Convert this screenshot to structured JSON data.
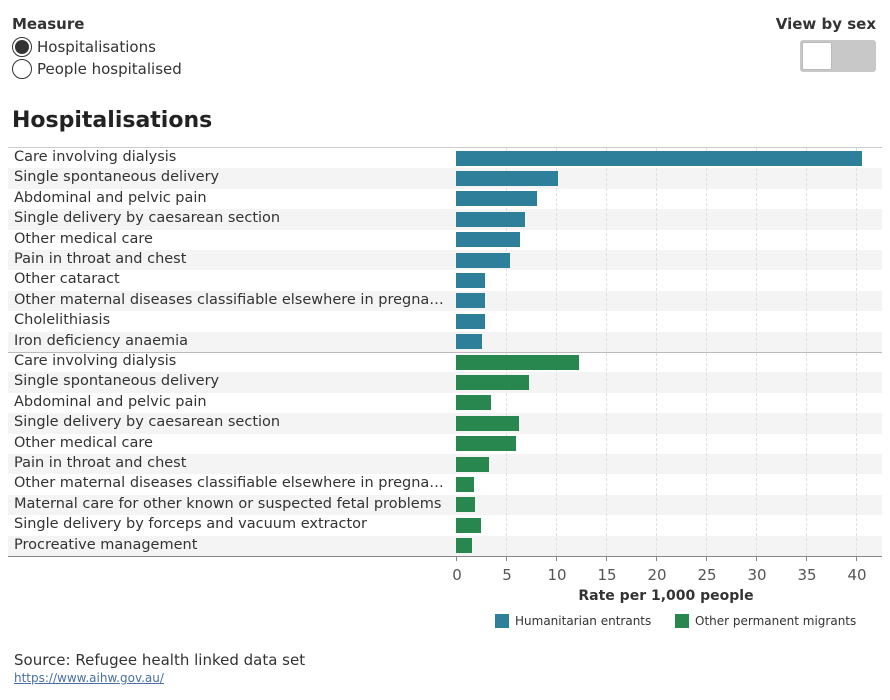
{
  "filters": {
    "measure_title": "Measure",
    "options": [
      "Hospitalisations",
      "People hospitalised"
    ],
    "selected": 0,
    "view_by_sex_label": "View by sex",
    "view_by_sex_on": false
  },
  "chart_data": {
    "type": "bar",
    "title": "Hospitalisations",
    "xlabel": "Rate per 1,000 people",
    "xlim": [
      0,
      42
    ],
    "xticks": [
      "0",
      "5",
      "10",
      "15",
      "20",
      "25",
      "30",
      "35",
      "40"
    ],
    "grid": true,
    "legend_placement": "bottom",
    "colors": {
      "Humanitarian entrants": "#2e7f9a",
      "Other permanent migrants": "#27874f"
    },
    "series": [
      {
        "name": "Humanitarian entrants",
        "categories": [
          "Care involving dialysis",
          "Single spontaneous delivery",
          "Abdominal and pelvic pain",
          "Single delivery by caesarean section",
          "Other medical care",
          "Pain in throat and chest",
          "Other cataract",
          "Other maternal diseases classifiable elsewhere in pregnancy..",
          "Cholelithiasis",
          "Iron deficiency anaemia"
        ],
        "values": [
          40.6,
          10.2,
          8.1,
          6.9,
          6.4,
          5.4,
          2.9,
          2.9,
          2.9,
          2.6
        ]
      },
      {
        "name": "Other permanent migrants",
        "categories": [
          "Care involving dialysis",
          "Single spontaneous delivery",
          "Abdominal and pelvic pain",
          "Single delivery by caesarean section",
          "Other medical care",
          "Pain in throat and chest",
          "Other maternal diseases classifiable elsewhere in pregnancy..",
          "Maternal care for other known or suspected fetal problems",
          "Single delivery by forceps and vacuum extractor",
          "Procreative management"
        ],
        "values": [
          12.3,
          7.3,
          3.5,
          6.3,
          6.0,
          3.3,
          1.8,
          1.9,
          2.5,
          1.6
        ]
      }
    ]
  },
  "footer": {
    "source": "Source: Refugee health linked data set",
    "link": "https://www.aihw.gov.au/"
  }
}
